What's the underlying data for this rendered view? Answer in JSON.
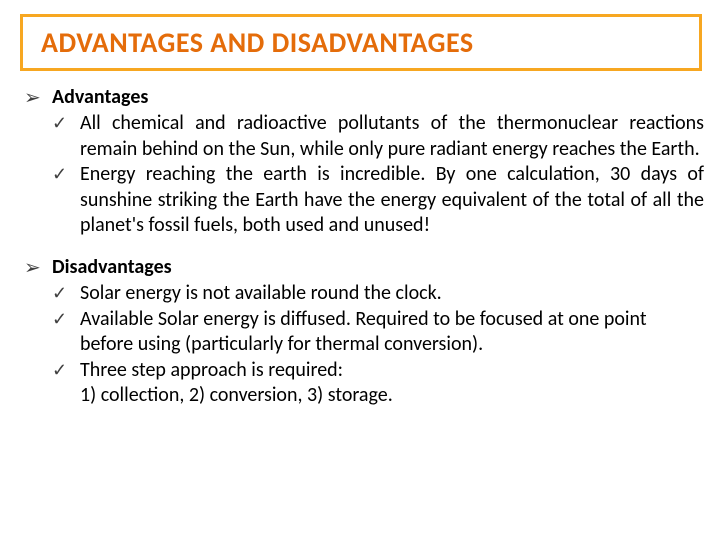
{
  "title": "ADVANTAGES AND DISADVANTAGES",
  "colors": {
    "title_border": "#f7a721",
    "title_text": "#e46c0a",
    "body_text": "#000000",
    "bullet": "#404040",
    "background": "#ffffff"
  },
  "typography": {
    "title_fontsize": 28,
    "title_weight": "bold",
    "body_fontsize": 20,
    "section_header_weight": "bold"
  },
  "sections": [
    {
      "heading": "Advantages",
      "items": [
        "All chemical and radioactive pollutants of the thermonuclear reactions remain behind on the Sun, while only pure radiant energy reaches the Earth.",
        "Energy reaching the earth is incredible.  By one calculation, 30 days of sunshine striking the Earth have the energy equivalent of the total of all the planet's fossil fuels, both used and unused!"
      ]
    },
    {
      "heading": "Disadvantages",
      "items": [
        "Solar energy is not available round the clock.",
        "Available Solar energy is diffused. Required to be focused at one point before using (particularly for thermal conversion).",
        "Three step approach is required:\n1) collection, 2) conversion, 3) storage."
      ]
    }
  ],
  "bullets": {
    "level1": "➢",
    "level2": "✓"
  }
}
